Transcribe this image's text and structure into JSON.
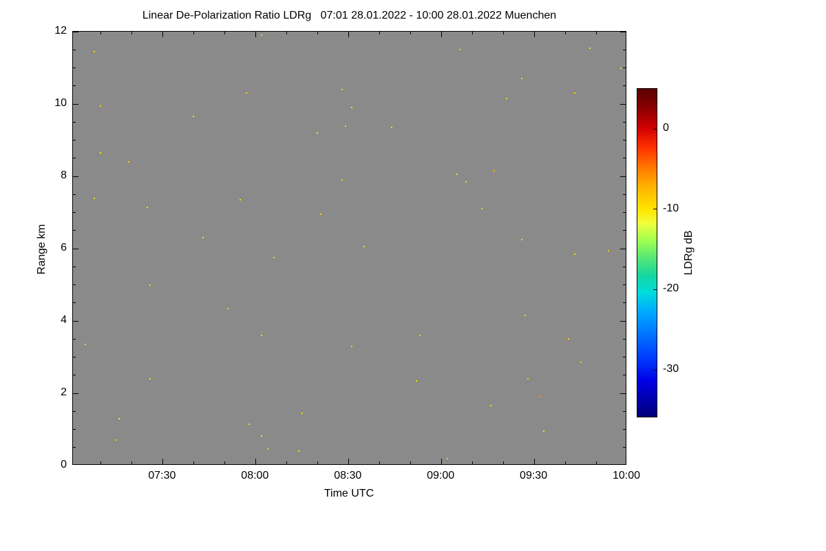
{
  "figure": {
    "background_color": "#ffffff",
    "frame_color": "#000000"
  },
  "chart_data": {
    "type": "heatmap",
    "title": "Linear De-Polarization Ratio LDRg   07:01 28.01.2022 - 10:00 28.01.2022 Muenchen",
    "xlabel": "Time UTC",
    "ylabel": "Range km",
    "x_unit": "minutes after 07:00 UTC",
    "x_domain": [
      1,
      180
    ],
    "x_ticks": [
      {
        "t": 30,
        "label": "07:30"
      },
      {
        "t": 60,
        "label": "08:00"
      },
      {
        "t": 90,
        "label": "08:30"
      },
      {
        "t": 120,
        "label": "09:00"
      },
      {
        "t": 150,
        "label": "09:30"
      },
      {
        "t": 180,
        "label": "10:00"
      }
    ],
    "x_minor_step": 10,
    "ylim": [
      0,
      12
    ],
    "y_ticks": [
      {
        "r": 0,
        "label": "0"
      },
      {
        "r": 2,
        "label": "2"
      },
      {
        "r": 4,
        "label": "4"
      },
      {
        "r": 6,
        "label": "6"
      },
      {
        "r": 8,
        "label": "8"
      },
      {
        "r": 10,
        "label": "10"
      },
      {
        "r": 12,
        "label": "12"
      }
    ],
    "y_minor_step": 0.5,
    "no_data_color": "#8a8a8a",
    "grid": false,
    "colorbar": {
      "label": "LDRg dB",
      "vmax": 5,
      "vmin": -36,
      "ticks": [
        {
          "v": 0,
          "label": "0"
        },
        {
          "v": -10,
          "label": "-10"
        },
        {
          "v": -20,
          "label": "-20"
        },
        {
          "v": -30,
          "label": "-30"
        }
      ],
      "stops_top_to_bottom": [
        {
          "f": 0.0,
          "c": "#5a0000"
        },
        {
          "f": 0.06,
          "c": "#8c0000"
        },
        {
          "f": 0.12,
          "c": "#d20000"
        },
        {
          "f": 0.18,
          "c": "#ff3200"
        },
        {
          "f": 0.24,
          "c": "#ff7800"
        },
        {
          "f": 0.3,
          "c": "#ffb400"
        },
        {
          "f": 0.37,
          "c": "#ffe600"
        },
        {
          "f": 0.41,
          "c": "#f0ff3c"
        },
        {
          "f": 0.46,
          "c": "#a5ff50"
        },
        {
          "f": 0.52,
          "c": "#50e678"
        },
        {
          "f": 0.57,
          "c": "#14d7a0"
        },
        {
          "f": 0.62,
          "c": "#00dcdc"
        },
        {
          "f": 0.68,
          "c": "#00aaff"
        },
        {
          "f": 0.75,
          "c": "#0073ff"
        },
        {
          "f": 0.82,
          "c": "#003cff"
        },
        {
          "f": 0.89,
          "c": "#0000e6"
        },
        {
          "f": 1.0,
          "c": "#000078"
        }
      ]
    },
    "points": [
      {
        "t": 5,
        "r": 3.35,
        "v": -10
      },
      {
        "t": 8,
        "r": 11.45,
        "v": -9
      },
      {
        "t": 8,
        "r": 7.4,
        "v": -10
      },
      {
        "t": 10,
        "r": 9.95,
        "v": -9
      },
      {
        "t": 10,
        "r": 8.65,
        "v": -10
      },
      {
        "t": 15,
        "r": 0.7,
        "v": -9
      },
      {
        "t": 16,
        "r": 1.3,
        "v": -11
      },
      {
        "t": 19,
        "r": 8.4,
        "v": -9
      },
      {
        "t": 25,
        "r": 7.15,
        "v": -10
      },
      {
        "t": 26,
        "r": 5.0,
        "v": -9
      },
      {
        "t": 26,
        "r": 2.4,
        "v": -10
      },
      {
        "t": 40,
        "r": 9.65,
        "v": -10
      },
      {
        "t": 43,
        "r": 6.3,
        "v": -11
      },
      {
        "t": 51,
        "r": 4.35,
        "v": -9
      },
      {
        "t": 55,
        "r": 7.35,
        "v": -10
      },
      {
        "t": 57,
        "r": 10.3,
        "v": -9
      },
      {
        "t": 58,
        "r": 1.15,
        "v": -10
      },
      {
        "t": 62,
        "r": 11.9,
        "v": -9
      },
      {
        "t": 62,
        "r": 3.7,
        "v": -6
      },
      {
        "t": 62,
        "r": 3.6,
        "v": -10
      },
      {
        "t": 62,
        "r": 0.82,
        "v": -10
      },
      {
        "t": 64,
        "r": 0.45,
        "v": -9
      },
      {
        "t": 66,
        "r": 5.75,
        "v": -10
      },
      {
        "t": 74,
        "r": 0.4,
        "v": -10
      },
      {
        "t": 75,
        "r": 1.45,
        "v": -9
      },
      {
        "t": 80,
        "r": 9.2,
        "v": -10
      },
      {
        "t": 81,
        "r": 6.95,
        "v": -9
      },
      {
        "t": 88,
        "r": 10.4,
        "v": -9
      },
      {
        "t": 88,
        "r": 7.9,
        "v": -9
      },
      {
        "t": 89,
        "r": 9.4,
        "v": -10
      },
      {
        "t": 91,
        "r": 9.9,
        "v": -10
      },
      {
        "t": 91,
        "r": 3.3,
        "v": -9
      },
      {
        "t": 95,
        "r": 6.05,
        "v": -10
      },
      {
        "t": 104,
        "r": 9.35,
        "v": -9
      },
      {
        "t": 112,
        "r": 2.35,
        "v": -10
      },
      {
        "t": 113,
        "r": 3.6,
        "v": -9
      },
      {
        "t": 122,
        "r": 0.2,
        "v": -9
      },
      {
        "t": 125,
        "r": 8.05,
        "v": -10
      },
      {
        "t": 126,
        "r": 11.5,
        "v": -9
      },
      {
        "t": 128,
        "r": 7.85,
        "v": -10
      },
      {
        "t": 133,
        "r": 7.1,
        "v": -9
      },
      {
        "t": 136,
        "r": 1.65,
        "v": -10
      },
      {
        "t": 137,
        "r": 8.15,
        "v": -8
      },
      {
        "t": 141,
        "r": 10.15,
        "v": -9
      },
      {
        "t": 146,
        "r": 10.7,
        "v": -10
      },
      {
        "t": 146,
        "r": 6.25,
        "v": -9
      },
      {
        "t": 147,
        "r": 4.15,
        "v": -10
      },
      {
        "t": 148,
        "r": 2.4,
        "v": -9
      },
      {
        "t": 152,
        "r": 1.9,
        "v": -6
      },
      {
        "t": 153,
        "r": 0.95,
        "v": -10
      },
      {
        "t": 161,
        "r": 3.5,
        "v": -9
      },
      {
        "t": 163,
        "r": 10.3,
        "v": -9
      },
      {
        "t": 163,
        "r": 5.85,
        "v": -10
      },
      {
        "t": 165,
        "r": 2.85,
        "v": -9
      },
      {
        "t": 168,
        "r": 11.55,
        "v": -10
      },
      {
        "t": 174,
        "r": 5.95,
        "v": -9
      },
      {
        "t": 178,
        "r": 11.0,
        "v": -10
      }
    ]
  }
}
